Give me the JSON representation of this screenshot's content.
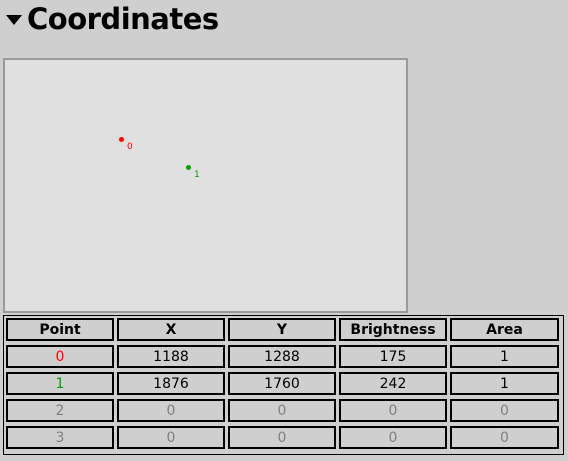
{
  "header": {
    "title": "Coordinates"
  },
  "colors": {
    "point_0": "#ff0000",
    "point_1": "#00a000",
    "inactive": "#808080"
  },
  "plot": {
    "points": [
      {
        "label": "0",
        "color": "#ff0000"
      },
      {
        "label": "1",
        "color": "#00a000"
      }
    ]
  },
  "table": {
    "headers": [
      "Point",
      "X",
      "Y",
      "Brightness",
      "Area"
    ],
    "rows": [
      [
        "0",
        "1188",
        "1288",
        "175",
        "1"
      ],
      [
        "1",
        "1876",
        "1760",
        "242",
        "1"
      ],
      [
        "2",
        "0",
        "0",
        "0",
        "0"
      ],
      [
        "3",
        "0",
        "0",
        "0",
        "0"
      ]
    ]
  }
}
